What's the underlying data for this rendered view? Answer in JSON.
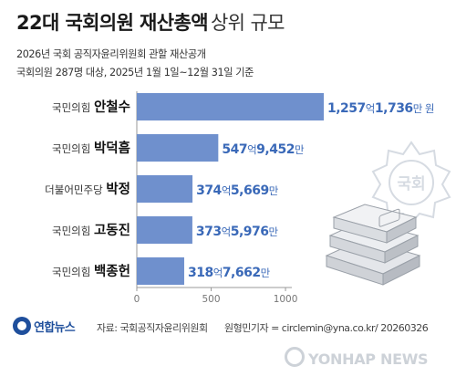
{
  "header": {
    "title_main": "22대 국회의원 재산총액",
    "title_sub": "상위 규모",
    "note_1": "2026년 국회 공직자윤리위원회 관할 재산공개",
    "note_2": "국회의원 287명 대상, 2025년 1월 1일~12월 31일 기준"
  },
  "footer": {
    "logo": "연합뉴스",
    "source": "자료: 국회공직자윤리위원회",
    "credit": "원형민기자 = circlemin@yna.co.kr/ 20260326"
  },
  "watermark": "YONHAP NEWS",
  "seal_text": "국회",
  "colors": {
    "bar": "#6f90cd",
    "value": "#3a69b8",
    "axis": "#999999",
    "party": "#333333",
    "name": "#111111"
  },
  "chart_data": {
    "type": "bar",
    "orientation": "horizontal",
    "unit": "억원",
    "xlim": [
      0,
      1257.1736
    ],
    "ticks": [
      0,
      500,
      1000
    ],
    "tick_labels": [
      "0",
      "500",
      "1000"
    ],
    "grid": false,
    "items": [
      {
        "party": "국민의힘",
        "name": "안철수",
        "value": 1257.1736,
        "eok": "1,257",
        "man": "1,736",
        "unit_eok": "억",
        "unit_man": "만 원"
      },
      {
        "party": "국민의힘",
        "name": "박덕흠",
        "value": 547.9452,
        "eok": "547",
        "man": "9,452",
        "unit_eok": "억",
        "unit_man": "만"
      },
      {
        "party": "더불어민주당",
        "name": "박정",
        "value": 374.5669,
        "eok": "374",
        "man": "5,669",
        "unit_eok": "억",
        "unit_man": "만"
      },
      {
        "party": "국민의힘",
        "name": "고동진",
        "value": 373.5976,
        "eok": "373",
        "man": "5,976",
        "unit_eok": "억",
        "unit_man": "만"
      },
      {
        "party": "국민의힘",
        "name": "백종헌",
        "value": 318.7662,
        "eok": "318",
        "man": "7,662",
        "unit_eok": "억",
        "unit_man": "만"
      }
    ]
  }
}
